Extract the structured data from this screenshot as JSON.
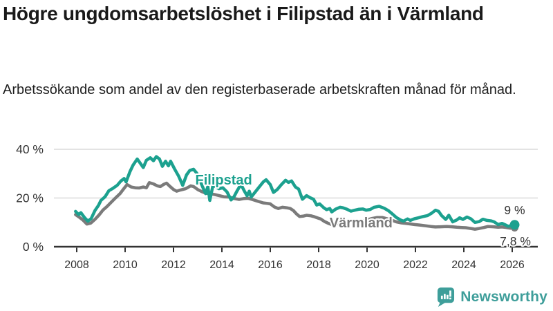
{
  "header": {
    "title": "Högre ungdomsarbetslöshet i Filipstad än i Värmland",
    "subtitle": "Arbetssökande som andel av den registerbaserade arbetskraften månad för månad."
  },
  "footer": {
    "brand": "Newsworthy",
    "logo_icon": "speech-bubble-bar-chart-icon"
  },
  "colors": {
    "filipstad": "#1CA18F",
    "varmland": "#7B7B7B",
    "axis": "#333333",
    "grid": "#DADADA",
    "title_text": "#1A1A1A",
    "brand": "#3E9E9A",
    "halo": "#FFFFFF"
  },
  "chart_data": {
    "type": "line",
    "unit": "%",
    "grid": "horizontal",
    "x_axis": {
      "ticks": [
        2008,
        2010,
        2012,
        2014,
        2016,
        2018,
        2020,
        2022,
        2024,
        2026
      ],
      "tick_labels": [
        "2008",
        "2010",
        "2012",
        "2014",
        "2016",
        "2018",
        "2020",
        "2022",
        "2024",
        "2026"
      ],
      "range": [
        2007.8,
        2026.3
      ]
    },
    "y_axis": {
      "ticks": [
        0,
        20,
        40
      ],
      "tick_labels": [
        "0 %",
        "20 %",
        "40 %"
      ],
      "range": [
        0,
        42
      ]
    },
    "series": [
      {
        "name": "Filipstad",
        "color": "#1CA18F",
        "end_label": "9 %",
        "end_value": 9,
        "label_anchor": {
          "year": 2012.9,
          "value": 25.5
        },
        "points": [
          [
            2007.95,
            14.5
          ],
          [
            2008.08,
            13.2
          ],
          [
            2008.17,
            14.0
          ],
          [
            2008.33,
            11.9
          ],
          [
            2008.46,
            10.5
          ],
          [
            2008.6,
            11.6
          ],
          [
            2008.75,
            14.8
          ],
          [
            2008.9,
            17.0
          ],
          [
            2009.0,
            19.0
          ],
          [
            2009.17,
            20.5
          ],
          [
            2009.33,
            23.0
          ],
          [
            2009.5,
            24.0
          ],
          [
            2009.67,
            25.2
          ],
          [
            2009.83,
            27.0
          ],
          [
            2009.96,
            28.0
          ],
          [
            2010.04,
            26.6
          ],
          [
            2010.2,
            30.8
          ],
          [
            2010.33,
            33.5
          ],
          [
            2010.5,
            36.0
          ],
          [
            2010.63,
            34.2
          ],
          [
            2010.75,
            32.5
          ],
          [
            2010.88,
            35.5
          ],
          [
            2011.04,
            36.5
          ],
          [
            2011.17,
            35.3
          ],
          [
            2011.29,
            37.0
          ],
          [
            2011.42,
            36.0
          ],
          [
            2011.54,
            33.0
          ],
          [
            2011.67,
            35.1
          ],
          [
            2011.79,
            33.2
          ],
          [
            2011.88,
            35.1
          ],
          [
            2012.04,
            32.0
          ],
          [
            2012.21,
            29.0
          ],
          [
            2012.38,
            25.2
          ],
          [
            2012.54,
            29.5
          ],
          [
            2012.67,
            31.3
          ],
          [
            2012.83,
            31.8
          ],
          [
            2012.96,
            30.2
          ],
          [
            2013.08,
            27.5
          ],
          [
            2013.25,
            23.5
          ],
          [
            2013.33,
            21.8
          ],
          [
            2013.42,
            24.7
          ],
          [
            2013.5,
            19.0
          ],
          [
            2013.63,
            25.2
          ],
          [
            2013.75,
            24.6
          ],
          [
            2013.88,
            23.8
          ],
          [
            2014.04,
            24.2
          ],
          [
            2014.21,
            22.5
          ],
          [
            2014.38,
            19.2
          ],
          [
            2014.5,
            20.5
          ],
          [
            2014.63,
            23.0
          ],
          [
            2014.79,
            25.6
          ],
          [
            2014.92,
            23.0
          ],
          [
            2015.04,
            20.9
          ],
          [
            2015.13,
            22.8
          ],
          [
            2015.21,
            20.4
          ],
          [
            2015.38,
            22.5
          ],
          [
            2015.54,
            24.5
          ],
          [
            2015.71,
            26.6
          ],
          [
            2015.83,
            27.5
          ],
          [
            2016.0,
            25.5
          ],
          [
            2016.13,
            22.3
          ],
          [
            2016.29,
            23.5
          ],
          [
            2016.46,
            25.5
          ],
          [
            2016.63,
            27.3
          ],
          [
            2016.75,
            26.4
          ],
          [
            2016.88,
            27.0
          ],
          [
            2017.04,
            24.5
          ],
          [
            2017.17,
            23.7
          ],
          [
            2017.33,
            19.5
          ],
          [
            2017.5,
            21.0
          ],
          [
            2017.63,
            20.2
          ],
          [
            2017.79,
            19.5
          ],
          [
            2017.92,
            17.1
          ],
          [
            2018.04,
            17.6
          ],
          [
            2018.21,
            16.0
          ],
          [
            2018.33,
            15.2
          ],
          [
            2018.46,
            15.7
          ],
          [
            2018.54,
            14.3
          ],
          [
            2018.71,
            15.5
          ],
          [
            2018.88,
            16.2
          ],
          [
            2019.0,
            16.0
          ],
          [
            2019.17,
            15.4
          ],
          [
            2019.33,
            14.6
          ],
          [
            2019.5,
            15.0
          ],
          [
            2019.67,
            15.4
          ],
          [
            2019.83,
            15.5
          ],
          [
            2019.96,
            15.0
          ],
          [
            2020.13,
            15.3
          ],
          [
            2020.29,
            16.2
          ],
          [
            2020.5,
            16.6
          ],
          [
            2020.71,
            15.8
          ],
          [
            2020.88,
            14.8
          ],
          [
            2021.04,
            13.5
          ],
          [
            2021.21,
            12.0
          ],
          [
            2021.38,
            11.0
          ],
          [
            2021.5,
            10.5
          ],
          [
            2021.67,
            11.4
          ],
          [
            2021.79,
            10.8
          ],
          [
            2021.96,
            11.5
          ],
          [
            2022.13,
            11.9
          ],
          [
            2022.29,
            12.3
          ],
          [
            2022.5,
            12.8
          ],
          [
            2022.67,
            13.8
          ],
          [
            2022.83,
            15.0
          ],
          [
            2022.96,
            14.5
          ],
          [
            2023.08,
            12.8
          ],
          [
            2023.25,
            11.2
          ],
          [
            2023.38,
            12.9
          ],
          [
            2023.54,
            10.2
          ],
          [
            2023.71,
            11.0
          ],
          [
            2023.83,
            11.9
          ],
          [
            2023.96,
            11.2
          ],
          [
            2024.13,
            12.2
          ],
          [
            2024.29,
            11.5
          ],
          [
            2024.46,
            10.0
          ],
          [
            2024.63,
            10.3
          ],
          [
            2024.79,
            11.3
          ],
          [
            2024.96,
            10.8
          ],
          [
            2025.13,
            10.6
          ],
          [
            2025.25,
            10.2
          ],
          [
            2025.42,
            9.1
          ],
          [
            2025.58,
            9.6
          ],
          [
            2025.71,
            9.0
          ],
          [
            2025.83,
            8.4
          ],
          [
            2026.1,
            9.0
          ]
        ]
      },
      {
        "name": "Värmland",
        "color": "#7B7B7B",
        "end_label": "7,8 %",
        "end_value": 7.8,
        "label_anchor": {
          "year": 2018.45,
          "value": 7.9
        },
        "points": [
          [
            2007.95,
            13.2
          ],
          [
            2008.08,
            12.3
          ],
          [
            2008.25,
            11.0
          ],
          [
            2008.42,
            9.3
          ],
          [
            2008.58,
            9.7
          ],
          [
            2008.75,
            11.2
          ],
          [
            2008.92,
            13.0
          ],
          [
            2009.08,
            15.0
          ],
          [
            2009.25,
            16.5
          ],
          [
            2009.42,
            18.2
          ],
          [
            2009.58,
            19.8
          ],
          [
            2009.79,
            21.8
          ],
          [
            2009.96,
            24.0
          ],
          [
            2010.08,
            25.5
          ],
          [
            2010.25,
            24.5
          ],
          [
            2010.42,
            24.2
          ],
          [
            2010.58,
            24.1
          ],
          [
            2010.75,
            24.5
          ],
          [
            2010.88,
            24.2
          ],
          [
            2011.0,
            26.3
          ],
          [
            2011.17,
            25.8
          ],
          [
            2011.33,
            25.0
          ],
          [
            2011.46,
            24.7
          ],
          [
            2011.58,
            25.5
          ],
          [
            2011.71,
            26.1
          ],
          [
            2011.83,
            25.0
          ],
          [
            2012.0,
            23.5
          ],
          [
            2012.13,
            22.8
          ],
          [
            2012.29,
            23.3
          ],
          [
            2012.5,
            23.8
          ],
          [
            2012.71,
            25.0
          ],
          [
            2012.83,
            24.7
          ],
          [
            2013.0,
            23.5
          ],
          [
            2013.17,
            22.6
          ],
          [
            2013.33,
            22.0
          ],
          [
            2013.5,
            21.8
          ],
          [
            2013.71,
            21.4
          ],
          [
            2013.92,
            20.9
          ],
          [
            2014.08,
            20.5
          ],
          [
            2014.29,
            20.4
          ],
          [
            2014.5,
            19.8
          ],
          [
            2014.71,
            19.4
          ],
          [
            2014.92,
            19.8
          ],
          [
            2015.08,
            19.9
          ],
          [
            2015.29,
            19.3
          ],
          [
            2015.5,
            18.6
          ],
          [
            2015.71,
            18.0
          ],
          [
            2015.88,
            17.8
          ],
          [
            2016.0,
            17.6
          ],
          [
            2016.17,
            16.3
          ],
          [
            2016.33,
            15.7
          ],
          [
            2016.5,
            16.2
          ],
          [
            2016.67,
            16.0
          ],
          [
            2016.83,
            15.7
          ],
          [
            2016.96,
            14.8
          ],
          [
            2017.08,
            13.5
          ],
          [
            2017.21,
            12.4
          ],
          [
            2017.38,
            12.6
          ],
          [
            2017.5,
            12.9
          ],
          [
            2017.67,
            12.7
          ],
          [
            2017.79,
            12.4
          ],
          [
            2017.96,
            11.8
          ],
          [
            2018.08,
            11.4
          ],
          [
            2018.25,
            10.3
          ],
          [
            2018.42,
            9.5
          ],
          [
            2018.54,
            9.1
          ],
          [
            2018.71,
            9.3
          ],
          [
            2018.88,
            9.7
          ],
          [
            2019.04,
            10.2
          ],
          [
            2019.21,
            10.5
          ],
          [
            2019.42,
            10.4
          ],
          [
            2019.63,
            10.2
          ],
          [
            2019.83,
            10.6
          ],
          [
            2020.0,
            11.0
          ],
          [
            2020.21,
            11.6
          ],
          [
            2020.42,
            12.0
          ],
          [
            2020.63,
            12.0
          ],
          [
            2020.83,
            11.5
          ],
          [
            2021.04,
            10.8
          ],
          [
            2021.21,
            10.2
          ],
          [
            2021.42,
            9.8
          ],
          [
            2021.58,
            9.6
          ],
          [
            2021.75,
            9.4
          ],
          [
            2021.96,
            9.1
          ],
          [
            2022.17,
            8.9
          ],
          [
            2022.42,
            8.6
          ],
          [
            2022.63,
            8.3
          ],
          [
            2022.83,
            8.1
          ],
          [
            2023.04,
            8.2
          ],
          [
            2023.29,
            8.3
          ],
          [
            2023.5,
            8.2
          ],
          [
            2023.71,
            8.0
          ],
          [
            2023.92,
            7.9
          ],
          [
            2024.08,
            7.8
          ],
          [
            2024.29,
            7.5
          ],
          [
            2024.46,
            7.2
          ],
          [
            2024.63,
            7.5
          ],
          [
            2024.83,
            7.9
          ],
          [
            2025.0,
            8.3
          ],
          [
            2025.21,
            8.2
          ],
          [
            2025.42,
            8.0
          ],
          [
            2025.58,
            8.1
          ],
          [
            2025.75,
            7.9
          ],
          [
            2025.92,
            7.6
          ],
          [
            2026.1,
            7.8
          ]
        ]
      }
    ]
  }
}
